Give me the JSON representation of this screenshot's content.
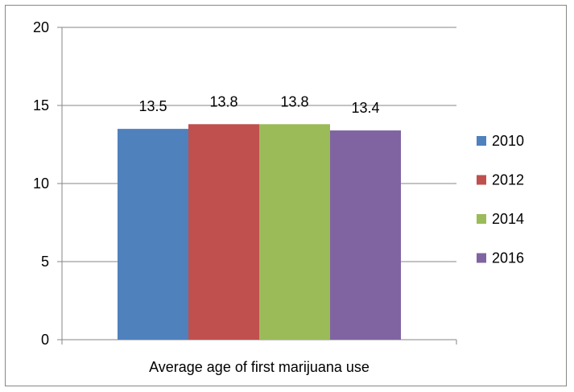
{
  "chart_data": {
    "type": "bar",
    "categories": [
      "Average age of first marijuana use"
    ],
    "series": [
      {
        "name": "2010",
        "values": [
          13.5
        ],
        "color": "#4F81BD"
      },
      {
        "name": "2012",
        "values": [
          13.8
        ],
        "color": "#C0504D"
      },
      {
        "name": "2014",
        "values": [
          13.8
        ],
        "color": "#9BBB59"
      },
      {
        "name": "2016",
        "values": [
          13.4
        ],
        "color": "#8064A2"
      }
    ],
    "data_labels": [
      "13.5",
      "13.8",
      "13.8",
      "13.4"
    ],
    "y_ticks": [
      "0",
      "5",
      "10",
      "15",
      "20"
    ],
    "ylim": [
      0,
      20
    ],
    "grid": true,
    "legend_position": "right",
    "title": "",
    "xlabel": "",
    "ylabel": ""
  }
}
